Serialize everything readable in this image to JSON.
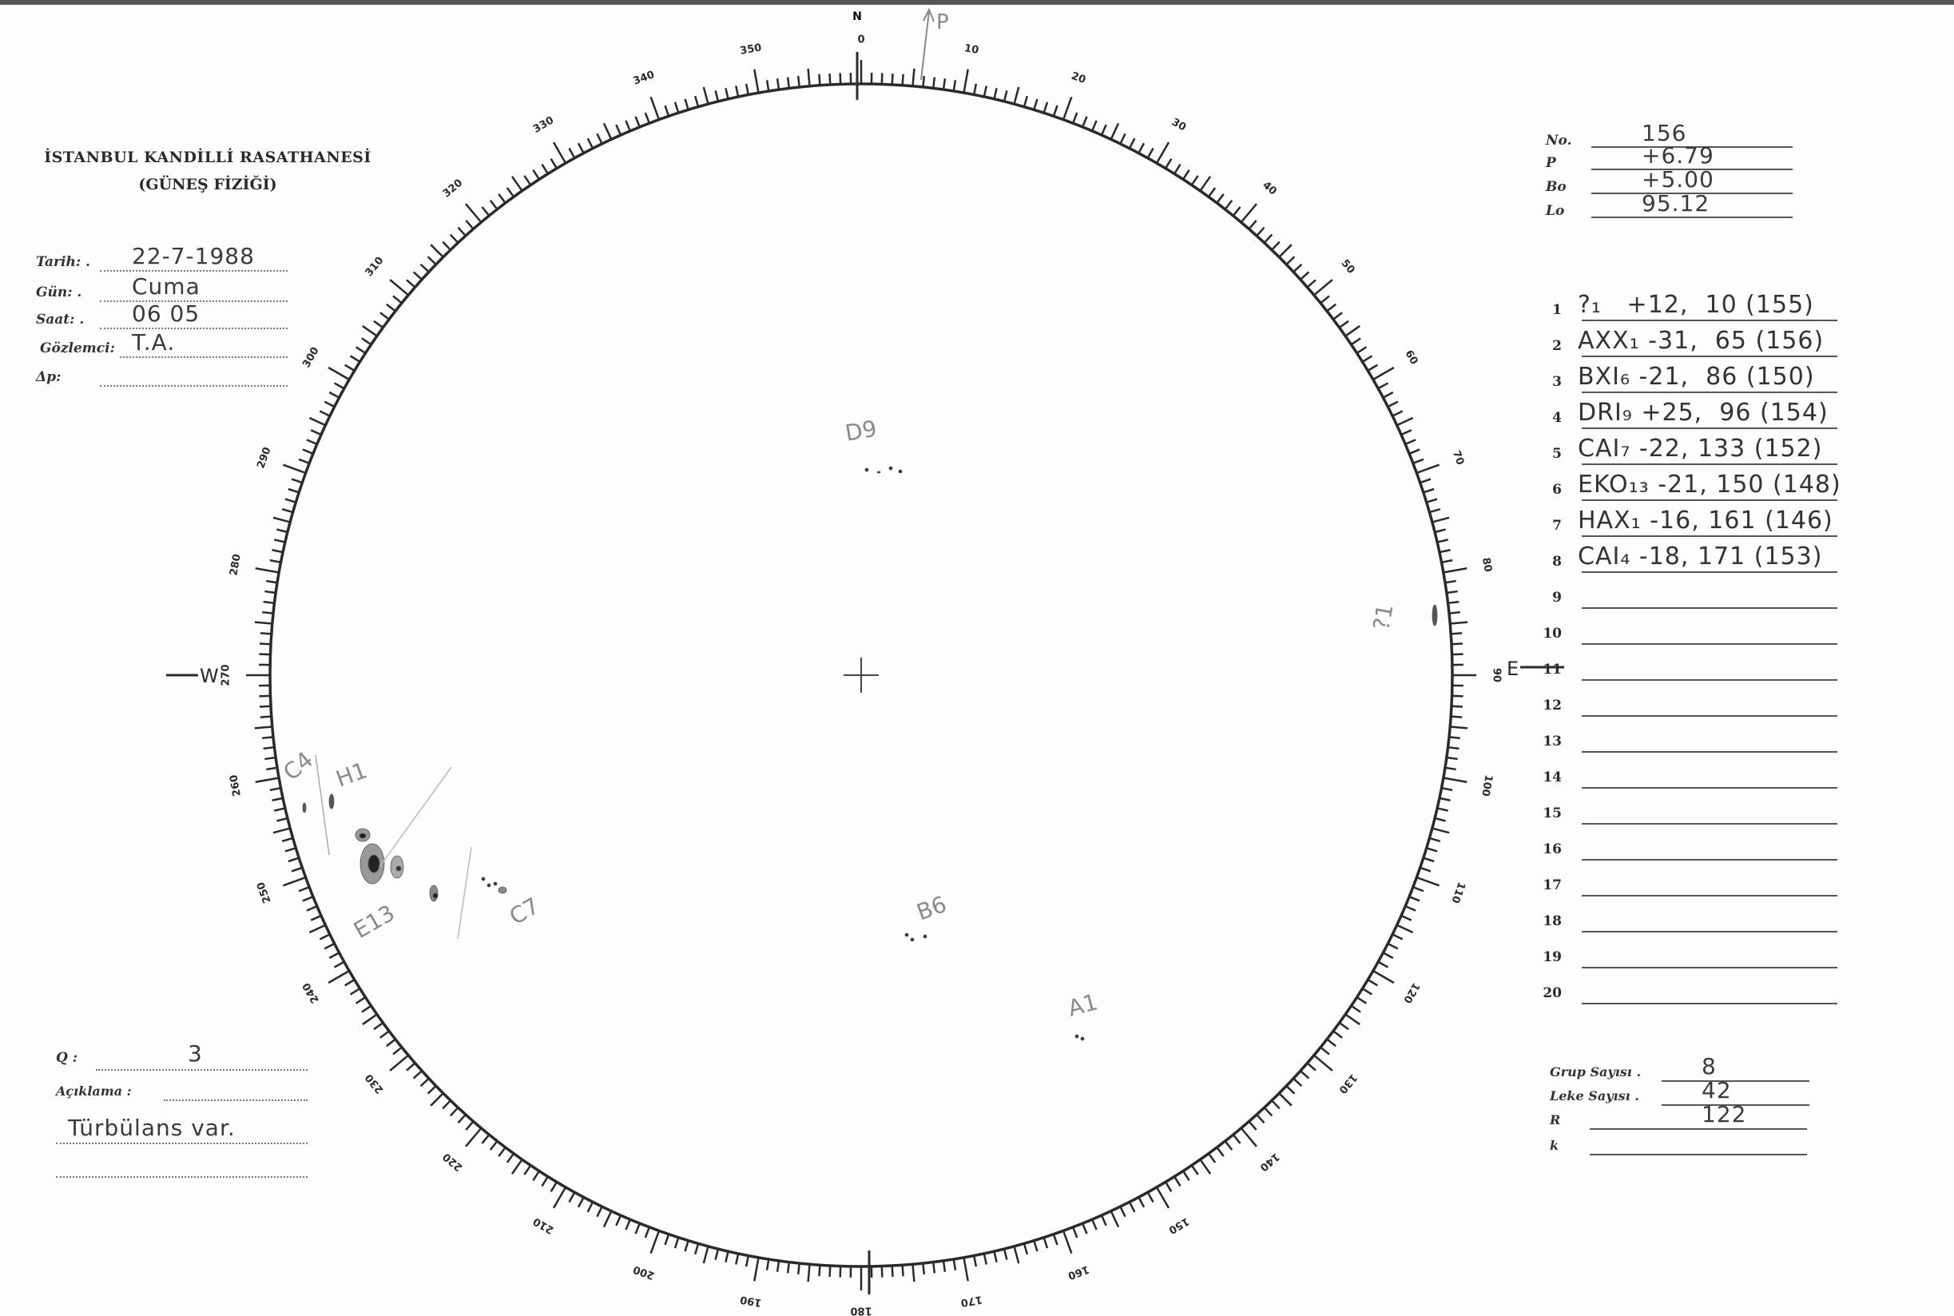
{
  "header": {
    "institution": "İSTANBUL KANDİLLİ RASATHANESİ",
    "department": "(GÜNEŞ FİZİĞİ)"
  },
  "observation": {
    "fields": [
      {
        "label": "Tarih: .",
        "value": "22-7-1988"
      },
      {
        "label": "Gün: .",
        "value": "Cuma"
      },
      {
        "label": "Saat: .",
        "value": "06 05"
      },
      {
        "label": "Gözlemci:",
        "value": "T.A."
      },
      {
        "label": "Δp:",
        "value": ""
      }
    ]
  },
  "ephemeris": {
    "fields": [
      {
        "label": "No.",
        "value": "156"
      },
      {
        "label": "P",
        "value": "+6.79"
      },
      {
        "label": "Bo",
        "value": "+5.00"
      },
      {
        "label": "Lo",
        "value": "95.12"
      }
    ]
  },
  "groups": [
    {
      "n": "1",
      "text": "?₁   +12,  10 (155)"
    },
    {
      "n": "2",
      "text": "AXX₁ -31,  65 (156)"
    },
    {
      "n": "3",
      "text": "BXI₆ -21,  86 (150)"
    },
    {
      "n": "4",
      "text": "DRI₉ +25,  96 (154)"
    },
    {
      "n": "5",
      "text": "CAI₇ -22, 133 (152)"
    },
    {
      "n": "6",
      "text": "EKO₁₃ -21, 150 (148)"
    },
    {
      "n": "7",
      "text": "HAX₁ -16, 161 (146)"
    },
    {
      "n": "8",
      "text": "CAI₄ -18, 171 (153)"
    },
    {
      "n": "9",
      "text": ""
    },
    {
      "n": "10",
      "text": ""
    },
    {
      "n": "11",
      "text": ""
    },
    {
      "n": "12",
      "text": ""
    },
    {
      "n": "13",
      "text": ""
    },
    {
      "n": "14",
      "text": ""
    },
    {
      "n": "15",
      "text": ""
    },
    {
      "n": "16",
      "text": ""
    },
    {
      "n": "17",
      "text": ""
    },
    {
      "n": "18",
      "text": ""
    },
    {
      "n": "19",
      "text": ""
    },
    {
      "n": "20",
      "text": ""
    }
  ],
  "summary": {
    "fields": [
      {
        "label": "Grup Sayısı .",
        "value": "8"
      },
      {
        "label": "Leke Sayısı .",
        "value": "42"
      },
      {
        "label": "R",
        "value": "122"
      },
      {
        "label": "k",
        "value": ""
      }
    ]
  },
  "notes": {
    "q_label": "Q :",
    "q_value": "3",
    "remarks_label": "Açıklama :",
    "remarks_value": "Türbülans var."
  },
  "disk": {
    "north_label": "N",
    "east_label": "E",
    "west_label": "W",
    "p_axis_label": "P",
    "ring_labels": [
      "0",
      "10",
      "20",
      "30",
      "40",
      "50",
      "60",
      "70",
      "80",
      "90",
      "100",
      "110",
      "120",
      "130",
      "140",
      "150",
      "160",
      "170",
      "180",
      "190",
      "200",
      "210",
      "220",
      "230",
      "240",
      "250",
      "260",
      "270",
      "280",
      "290",
      "300",
      "310",
      "320",
      "330",
      "340",
      "350"
    ],
    "group_annotations": [
      "D9",
      "E13",
      "C7",
      "B6",
      "A1",
      "?1",
      "C4",
      "H1"
    ]
  },
  "colors": {
    "ink": "#2a2a2a",
    "pencil": "#8a8a8a",
    "paper": "#fdfdfd",
    "scan_edge": "#555555"
  }
}
